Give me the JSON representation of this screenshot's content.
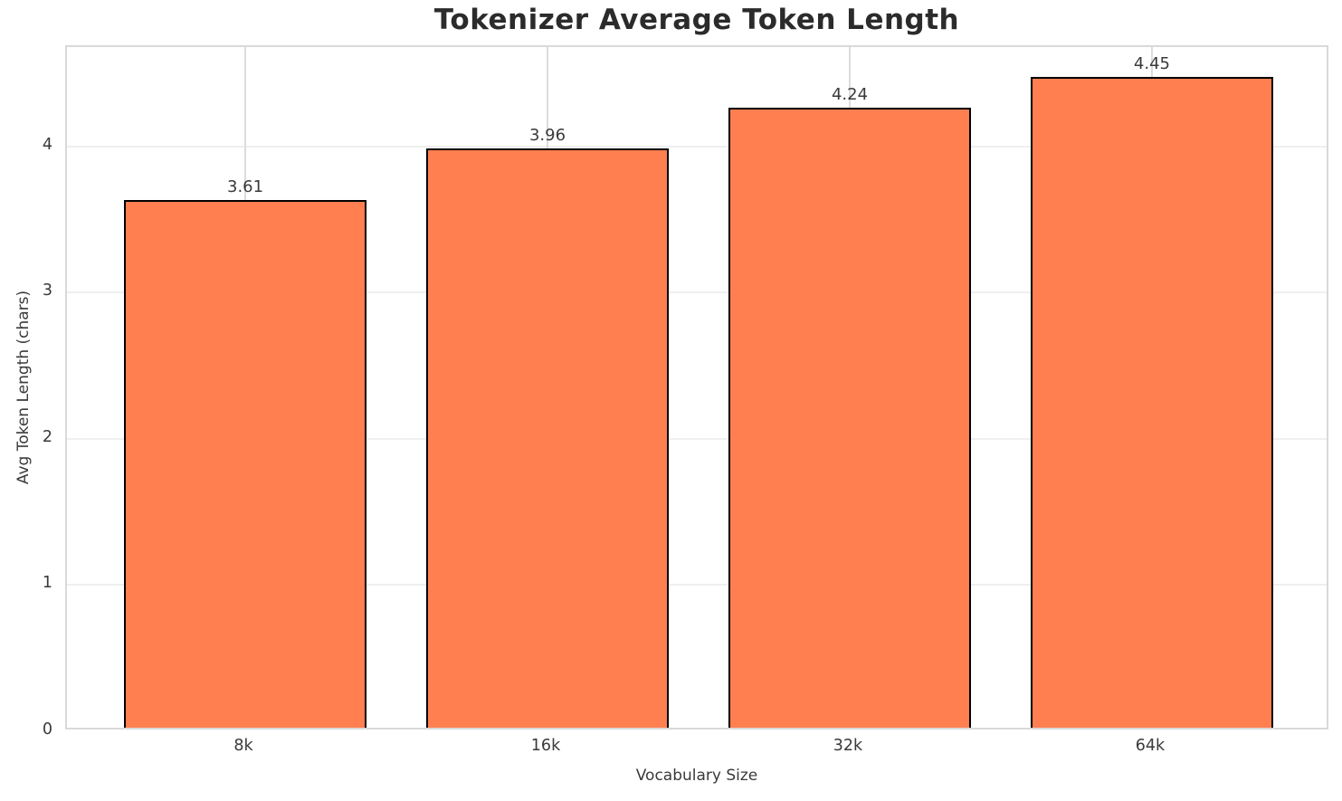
{
  "chart_data": {
    "type": "bar",
    "title": "Tokenizer Average Token Length",
    "xlabel": "Vocabulary Size",
    "ylabel": "Avg Token Length (chars)",
    "categories": [
      "8k",
      "16k",
      "32k",
      "64k"
    ],
    "values": [
      3.61,
      3.96,
      4.24,
      4.45
    ],
    "value_labels": [
      "3.61",
      "3.96",
      "4.24",
      "4.45"
    ],
    "yticks": [
      0,
      1,
      2,
      3,
      4
    ],
    "ytick_labels": [
      "0",
      "1",
      "2",
      "3",
      "4"
    ],
    "ylim": [
      0,
      4.68
    ],
    "grid": true,
    "legend": null,
    "bar_width_fraction": 0.8
  },
  "style": {
    "bar_fill": "#FF7F50",
    "bar_edge": "#000000",
    "grid_vertical": "#DCDCDC",
    "grid_horizontal": "#EFEFEF",
    "spine": "#D9D9D9",
    "tick_text": "#3A3A3A",
    "title_text": "#2B2B2B",
    "background": "#FFFFFF"
  }
}
